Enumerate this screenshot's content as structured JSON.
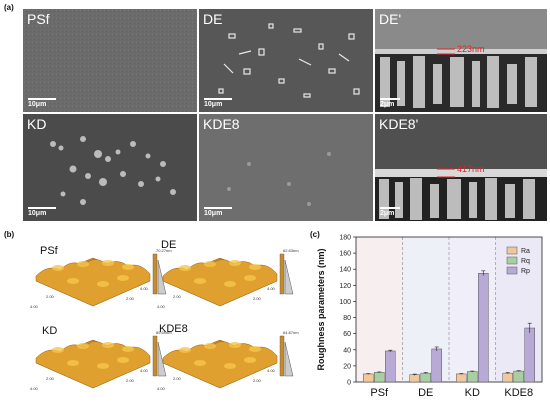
{
  "panels": {
    "a": "(a)",
    "b": "(b)",
    "c": "(c)"
  },
  "sem": [
    {
      "label": "PSf",
      "scale": "10μm"
    },
    {
      "label": "DE",
      "scale": "10μm"
    },
    {
      "label": "DE'",
      "scale": "2μm",
      "thickness": "223nm"
    },
    {
      "label": "KD",
      "scale": "10μm"
    },
    {
      "label": "KDE8",
      "scale": "10μm"
    },
    {
      "label": "KDE8'",
      "scale": "2μm",
      "thickness": "417nm"
    }
  ],
  "afm": [
    {
      "label": "PSf",
      "zmax": "70.27nm"
    },
    {
      "label": "DE",
      "zmax": "62.63nm"
    },
    {
      "label": "KD",
      "zmax": "89.69nm"
    },
    {
      "label": "KDE8",
      "zmax": "64.87nm"
    }
  ],
  "afm_axis": {
    "a": "2.00",
    "b": "4.00"
  },
  "chart_data": {
    "type": "bar",
    "categories": [
      "PSf",
      "DE",
      "KD",
      "KDE8"
    ],
    "series": [
      {
        "name": "Ra",
        "values": [
          10,
          9,
          10,
          11
        ],
        "errors": [
          0.5,
          0.8,
          0.6,
          0.8
        ],
        "color": "#f0c89a"
      },
      {
        "name": "Rq",
        "values": [
          12,
          11,
          13,
          13.5
        ],
        "errors": [
          0.5,
          0.8,
          0.6,
          0.6
        ],
        "color": "#a8cfa4"
      },
      {
        "name": "Rp",
        "values": [
          38.5,
          41,
          135,
          67
        ],
        "errors": [
          1,
          2.5,
          3,
          6
        ],
        "color": "#b9a9d6"
      }
    ],
    "ylabel": "Roughness parameters (nm)",
    "ylim": [
      0,
      180
    ],
    "yticks": [
      "0",
      "20",
      "40",
      "60",
      "80",
      "100",
      "120",
      "140",
      "160",
      "180"
    ],
    "legend": "top-right"
  }
}
